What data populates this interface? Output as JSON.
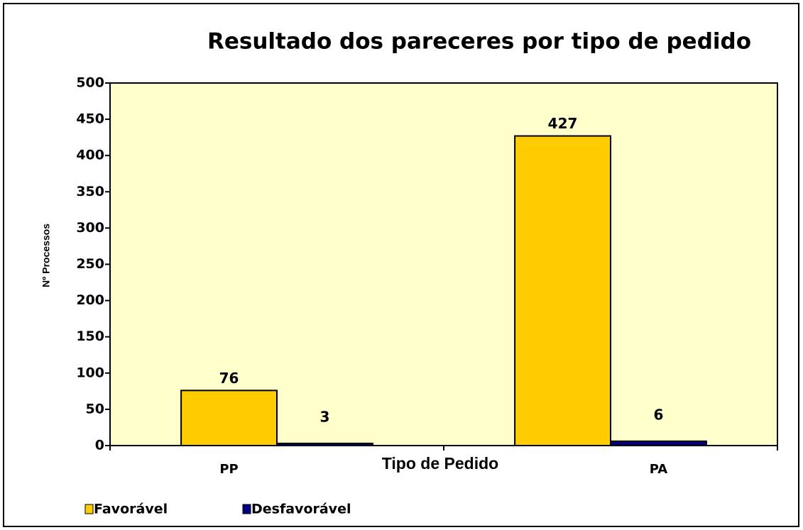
{
  "chart_data": {
    "type": "bar",
    "title": "Resultado dos pareceres por tipo de pedido",
    "x_label": "Tipo de Pedido",
    "y_label": "Nº Processos",
    "categories": [
      "PP",
      "PA"
    ],
    "series": [
      {
        "name": "Favorável",
        "color": "#ffcc00",
        "values": [
          76,
          427
        ]
      },
      {
        "name": "Desfavorável",
        "color": "#000080",
        "values": [
          3,
          6
        ]
      }
    ],
    "ylim": [
      0,
      500
    ],
    "yticks": [
      0,
      50,
      100,
      150,
      200,
      250,
      300,
      350,
      400,
      450,
      500
    ],
    "plot_background": "#ffffcc",
    "legend": "bottom"
  }
}
